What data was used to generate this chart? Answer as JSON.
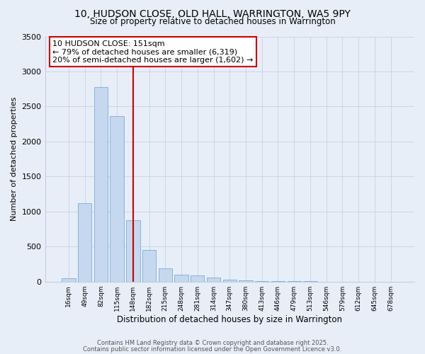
{
  "title_line1": "10, HUDSON CLOSE, OLD HALL, WARRINGTON, WA5 9PY",
  "title_line2": "Size of property relative to detached houses in Warrington",
  "xlabel": "Distribution of detached houses by size in Warrington",
  "ylabel": "Number of detached properties",
  "categories": [
    "16sqm",
    "49sqm",
    "82sqm",
    "115sqm",
    "148sqm",
    "182sqm",
    "215sqm",
    "248sqm",
    "281sqm",
    "314sqm",
    "347sqm",
    "380sqm",
    "413sqm",
    "446sqm",
    "479sqm",
    "513sqm",
    "546sqm",
    "579sqm",
    "612sqm",
    "645sqm",
    "678sqm"
  ],
  "values": [
    50,
    1120,
    2780,
    2360,
    880,
    450,
    185,
    100,
    90,
    60,
    30,
    20,
    10,
    5,
    5,
    3,
    2,
    1,
    1,
    0,
    0
  ],
  "property_index": 4,
  "annotation_line1": "10 HUDSON CLOSE: 151sqm",
  "annotation_line2": "← 79% of detached houses are smaller (6,319)",
  "annotation_line3": "20% of semi-detached houses are larger (1,602) →",
  "bar_color": "#c5d8ef",
  "bar_edge_color": "#7badd4",
  "vline_color": "#cc0000",
  "annotation_box_edge_color": "#cc0000",
  "annotation_box_face_color": "#ffffff",
  "background_color": "#e8eef8",
  "grid_color": "#c0ccdd",
  "ylim": [
    0,
    3500
  ],
  "yticks": [
    0,
    500,
    1000,
    1500,
    2000,
    2500,
    3000,
    3500
  ],
  "footnote1": "Contains HM Land Registry data © Crown copyright and database right 2025.",
  "footnote2": "Contains public sector information licensed under the Open Government Licence v3.0."
}
